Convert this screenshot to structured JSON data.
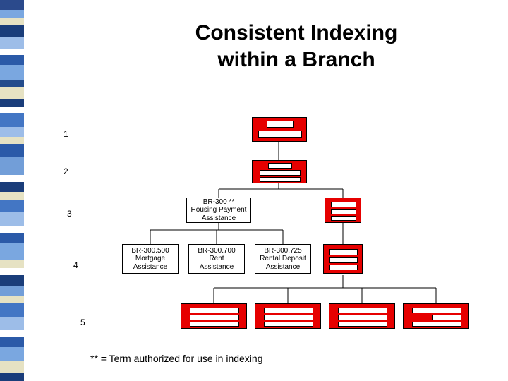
{
  "title_line1": "Consistent Indexing",
  "title_line2": "within a Branch",
  "footnote": "** = Term authorized for use in indexing",
  "levels": [
    "1",
    "2",
    "3",
    "4",
    "5"
  ],
  "level_positions_top": [
    183,
    236,
    296,
    369,
    450
  ],
  "sidebar_bands": [
    {
      "h": 14,
      "c": "#2b4a8c"
    },
    {
      "h": 12,
      "c": "#7aa7e0"
    },
    {
      "h": 10,
      "c": "#e6e2c3"
    },
    {
      "h": 16,
      "c": "#1a3d7a"
    },
    {
      "h": 18,
      "c": "#9dbde8"
    },
    {
      "h": 8,
      "c": "#ffffff"
    },
    {
      "h": 14,
      "c": "#2b5aa8"
    },
    {
      "h": 22,
      "c": "#7aa7e0"
    },
    {
      "h": 10,
      "c": "#244c8c"
    },
    {
      "h": 16,
      "c": "#e6e2c3"
    },
    {
      "h": 12,
      "c": "#1a3d7a"
    },
    {
      "h": 8,
      "c": "#ffffff"
    },
    {
      "h": 20,
      "c": "#4376c4"
    },
    {
      "h": 14,
      "c": "#9dbde8"
    },
    {
      "h": 10,
      "c": "#e6e2c3"
    },
    {
      "h": 18,
      "c": "#2b5aa8"
    },
    {
      "h": 26,
      "c": "#729ed8"
    },
    {
      "h": 10,
      "c": "#ffffff"
    },
    {
      "h": 14,
      "c": "#1a3d7a"
    },
    {
      "h": 12,
      "c": "#e6e2c3"
    },
    {
      "h": 16,
      "c": "#4376c4"
    },
    {
      "h": 20,
      "c": "#9dbde8"
    },
    {
      "h": 10,
      "c": "#ffffff"
    },
    {
      "h": 14,
      "c": "#2b5aa8"
    },
    {
      "h": 24,
      "c": "#7aa7e0"
    },
    {
      "h": 12,
      "c": "#e6e2c3"
    },
    {
      "h": 10,
      "c": "#ffffff"
    },
    {
      "h": 16,
      "c": "#1a3d7a"
    },
    {
      "h": 14,
      "c": "#729ed8"
    },
    {
      "h": 10,
      "c": "#e6e2c3"
    },
    {
      "h": 20,
      "c": "#4376c4"
    },
    {
      "h": 18,
      "c": "#9dbde8"
    },
    {
      "h": 10,
      "c": "#ffffff"
    },
    {
      "h": 14,
      "c": "#2b5aa8"
    },
    {
      "h": 20,
      "c": "#7aa7e0"
    },
    {
      "h": 16,
      "c": "#e6e2c3"
    },
    {
      "h": 12,
      "c": "#1a3d7a"
    }
  ],
  "white_boxes": {
    "l3_left": {
      "code": "BR-300 **",
      "t1": "Housing Payment",
      "t2": "Assistance"
    },
    "l4_a": {
      "code": "BR-300.500",
      "t1": "Mortgage",
      "t2": "Assistance"
    },
    "l4_b": {
      "code": "BR-300.700",
      "t1": "Rent",
      "t2": "Assistance"
    },
    "l4_c": {
      "code": "BR-300.725",
      "t1": "Rental Deposit",
      "t2": "Assistance"
    }
  },
  "colors": {
    "red": "#e60000",
    "black": "#000000",
    "white": "#ffffff"
  }
}
